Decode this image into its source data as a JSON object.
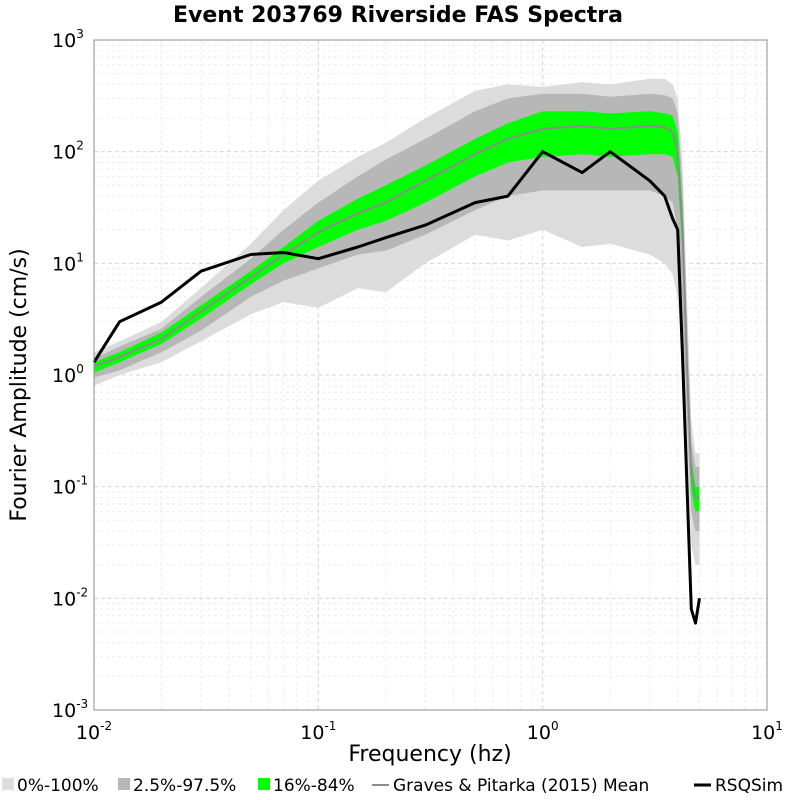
{
  "chart_data": {
    "type": "area",
    "title": "Event 203769 Riverside FAS Spectra",
    "xlabel": "Frequency (hz)",
    "ylabel": "Fourier Amplitude (cm/s)",
    "xscale": "log",
    "yscale": "log",
    "xlim": [
      0.01,
      10
    ],
    "ylim": [
      0.001,
      1000
    ],
    "grid": true,
    "legend_position": "bottom",
    "x_ticks": [
      {
        "base": "10",
        "exp": "-2",
        "value": 0.01
      },
      {
        "base": "10",
        "exp": "-1",
        "value": 0.1
      },
      {
        "base": "10",
        "exp": "0",
        "value": 1
      },
      {
        "base": "10",
        "exp": "1",
        "value": 10
      }
    ],
    "y_ticks": [
      {
        "base": "10",
        "exp": "3",
        "value": 1000
      },
      {
        "base": "10",
        "exp": "2",
        "value": 100
      },
      {
        "base": "10",
        "exp": "1",
        "value": 10
      },
      {
        "base": "10",
        "exp": "0",
        "value": 1
      },
      {
        "base": "10",
        "exp": "-1",
        "value": 0.1
      },
      {
        "base": "10",
        "exp": "-2",
        "value": 0.01
      },
      {
        "base": "10",
        "exp": "-3",
        "value": 0.001
      }
    ],
    "x": [
      0.01,
      0.013,
      0.02,
      0.03,
      0.05,
      0.07,
      0.1,
      0.15,
      0.2,
      0.3,
      0.5,
      0.7,
      1.0,
      1.5,
      2.0,
      3.0,
      3.5,
      3.8,
      4.0,
      4.2,
      4.4,
      4.6,
      4.8,
      5.0
    ],
    "series": [
      {
        "name": "0%-100%",
        "color": "#dcdcdc",
        "band": true,
        "lower": [
          0.8,
          1.0,
          1.3,
          2.0,
          3.5,
          4.5,
          4.0,
          6.0,
          5.5,
          10.0,
          18.0,
          16.0,
          20.0,
          14.0,
          15.0,
          12.0,
          10.0,
          8.0,
          5.0,
          1.5,
          0.2,
          0.03,
          0.02,
          0.02
        ],
        "upper": [
          1.6,
          2.0,
          3.0,
          6.0,
          15.0,
          30.0,
          55.0,
          90.0,
          120.0,
          200.0,
          350.0,
          400.0,
          380.0,
          420.0,
          400.0,
          450.0,
          450.0,
          400.0,
          300.0,
          80.0,
          5.0,
          0.4,
          0.2,
          0.2
        ]
      },
      {
        "name": "2.5%-97.5%",
        "color": "#b7b7b7",
        "band": true,
        "lower": [
          0.95,
          1.1,
          1.6,
          2.5,
          5.0,
          7.0,
          9.0,
          12.0,
          13.0,
          18.0,
          30.0,
          40.0,
          45.0,
          45.0,
          45.0,
          45.0,
          40.0,
          35.0,
          20.0,
          4.0,
          0.4,
          0.06,
          0.04,
          0.04
        ],
        "upper": [
          1.4,
          1.8,
          2.6,
          5.0,
          11.0,
          20.0,
          35.0,
          60.0,
          85.0,
          130.0,
          230.0,
          300.0,
          330.0,
          330.0,
          310.0,
          330.0,
          320.0,
          300.0,
          220.0,
          50.0,
          3.0,
          0.25,
          0.15,
          0.15
        ]
      },
      {
        "name": "16%-84%",
        "color": "#00ff00",
        "band": true,
        "lower": [
          1.05,
          1.3,
          1.9,
          3.2,
          6.5,
          10.0,
          14.0,
          20.0,
          24.0,
          35.0,
          60.0,
          80.0,
          90.0,
          95.0,
          90.0,
          95.0,
          95.0,
          90.0,
          60.0,
          12.0,
          0.7,
          0.09,
          0.06,
          0.06
        ],
        "upper": [
          1.3,
          1.6,
          2.4,
          4.2,
          8.5,
          14.0,
          24.0,
          38.0,
          50.0,
          75.0,
          130.0,
          180.0,
          230.0,
          230.0,
          220.0,
          230.0,
          220.0,
          210.0,
          150.0,
          30.0,
          1.8,
          0.18,
          0.1,
          0.1
        ]
      },
      {
        "name": "Graves & Pitarka (2015) Mean",
        "color": "#8c8c8c",
        "band": false,
        "values": [
          1.2,
          1.45,
          2.1,
          3.7,
          7.5,
          12.0,
          19.0,
          28.0,
          35.0,
          55.0,
          95.0,
          130.0,
          160.0,
          170.0,
          160.0,
          170.0,
          165.0,
          150.0,
          100.0,
          20.0,
          1.2,
          0.13,
          0.08,
          0.08
        ]
      },
      {
        "name": "RSQSim",
        "color": "#000000",
        "band": false,
        "values": [
          1.3,
          3.0,
          4.5,
          8.5,
          12.0,
          12.5,
          11.0,
          14.0,
          17.0,
          22.0,
          35.0,
          40.0,
          100.0,
          65.0,
          100.0,
          55.0,
          40.0,
          25.0,
          20.0,
          1.5,
          0.1,
          0.008,
          0.006,
          0.01
        ]
      }
    ]
  }
}
